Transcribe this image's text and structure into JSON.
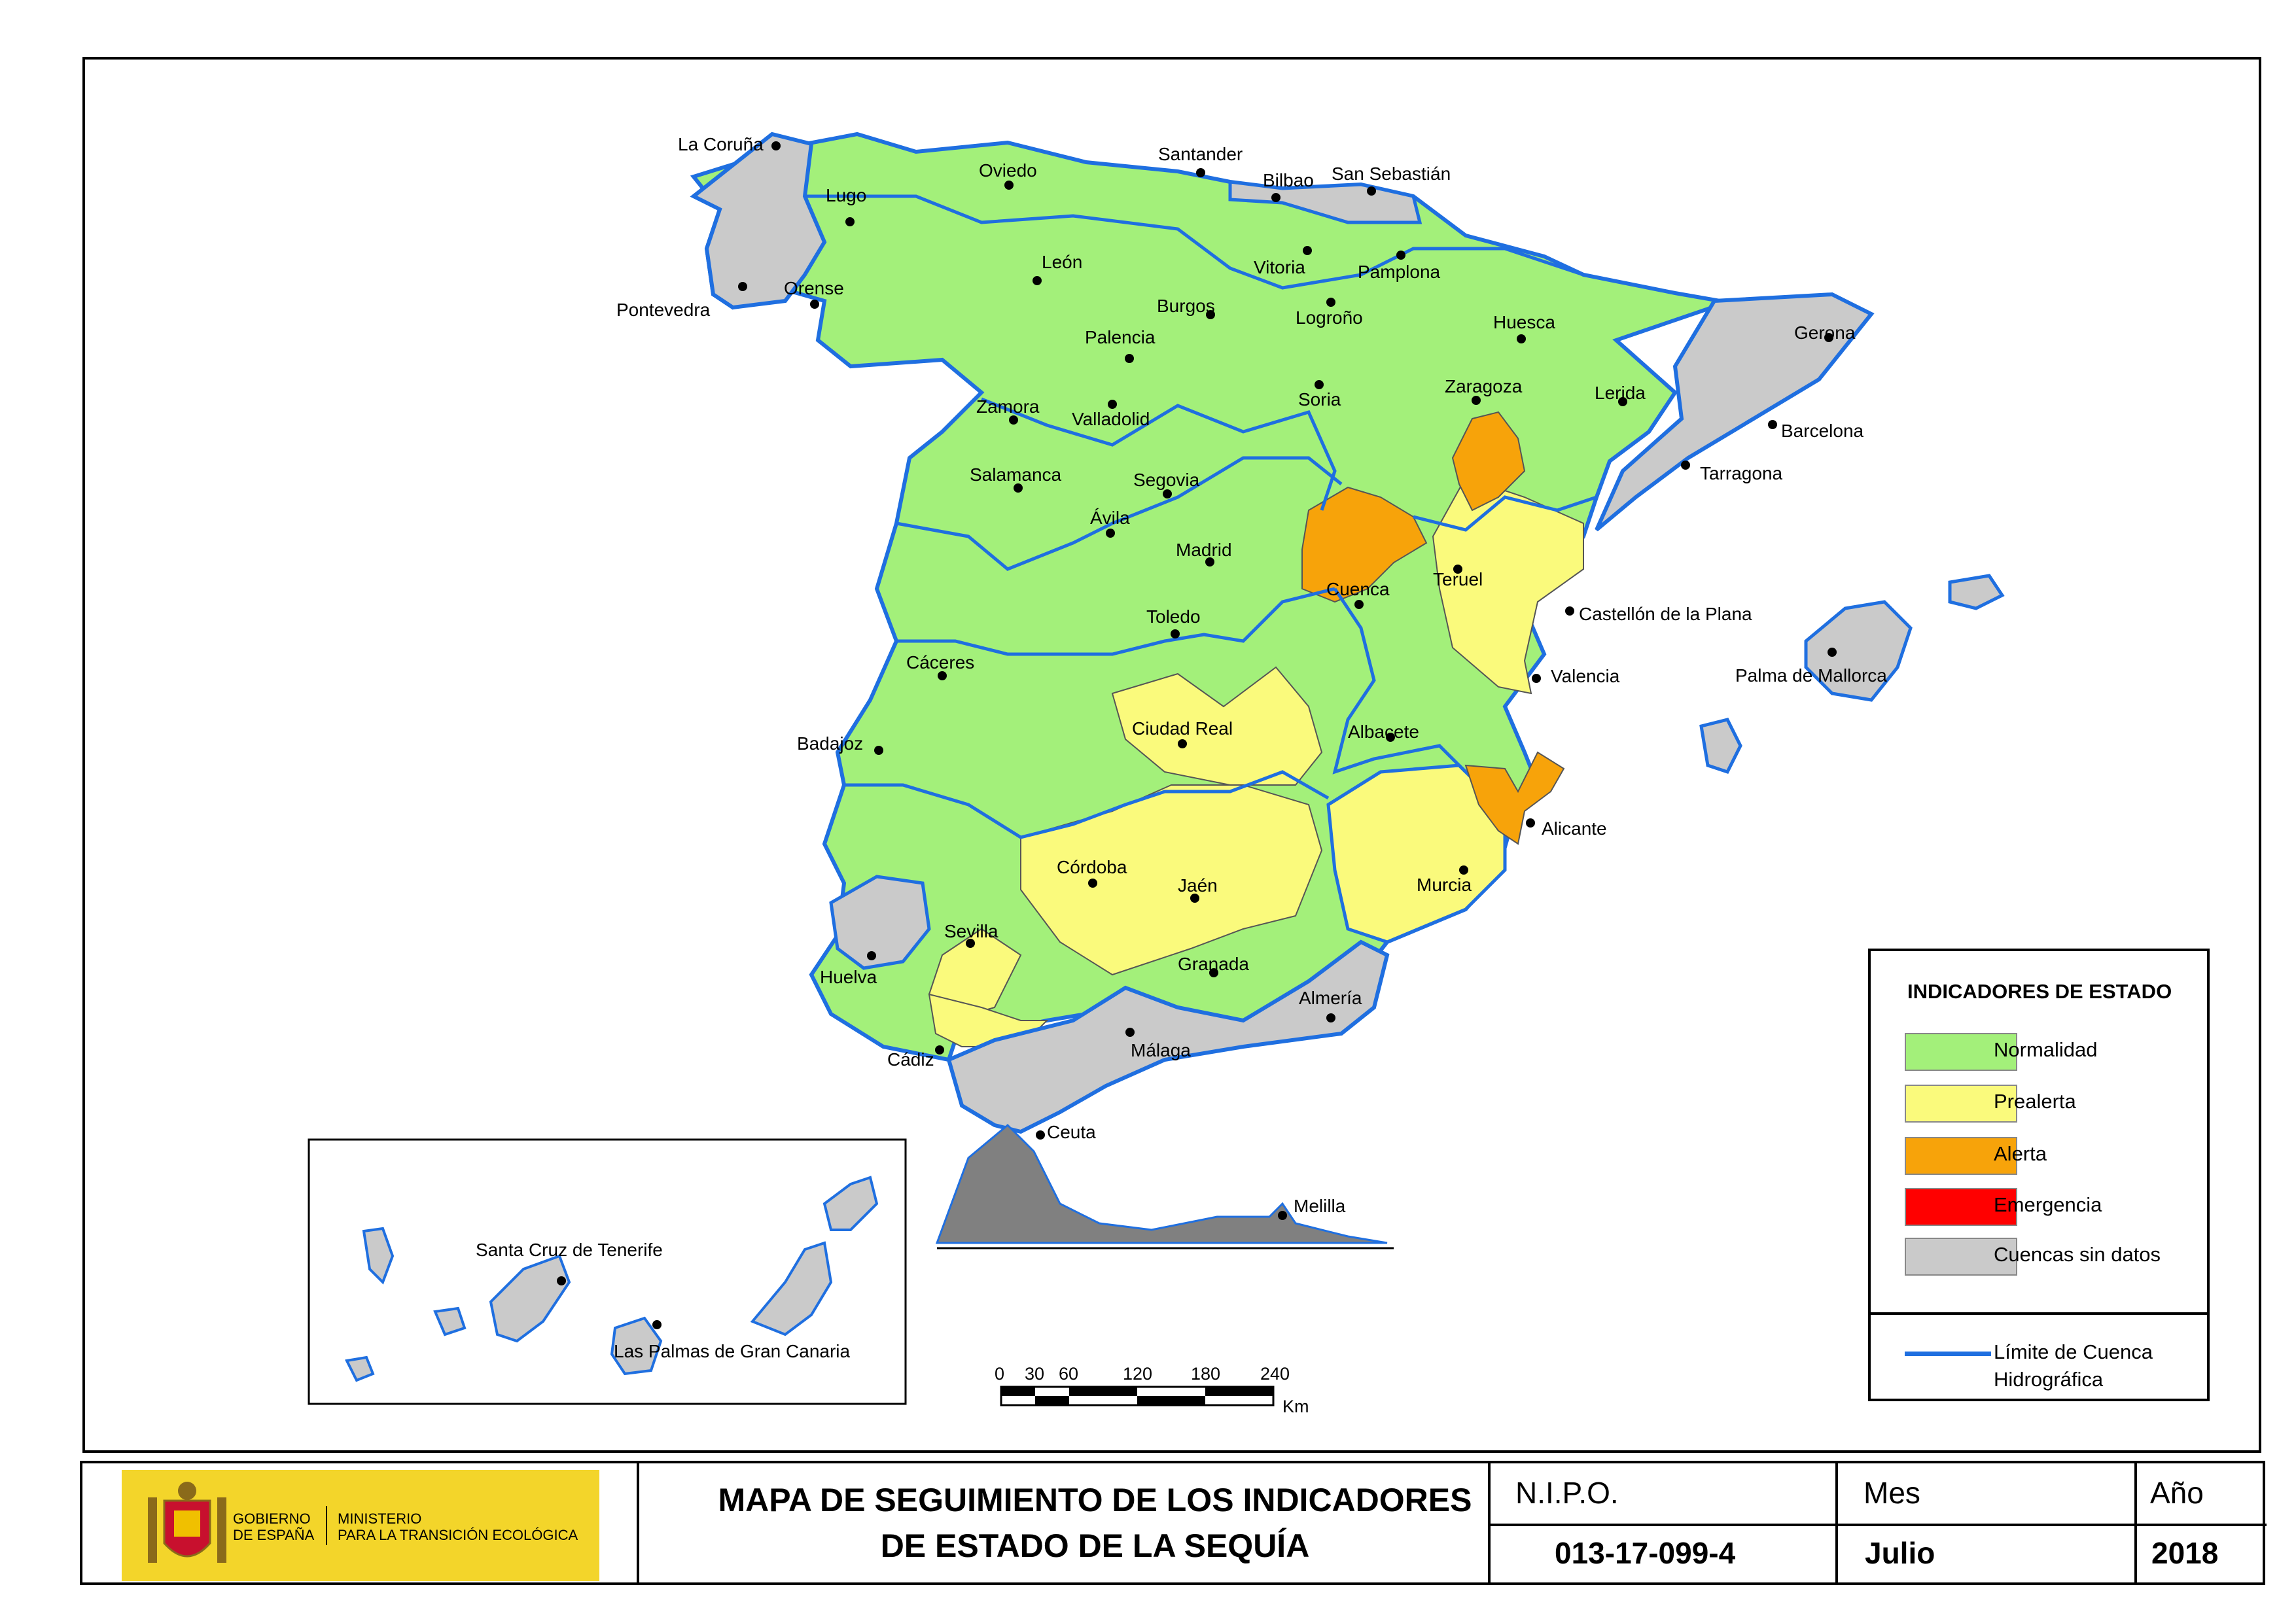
{
  "legend": {
    "title": "INDICADORES DE ESTADO",
    "items": [
      {
        "label": "Normalidad",
        "color": "#a3f07a"
      },
      {
        "label": "Prealerta",
        "color": "#fafa7c"
      },
      {
        "label": "Alerta",
        "color": "#f7a30a"
      },
      {
        "label": "Emergencia",
        "color": "#ff0000"
      },
      {
        "label": "Cuencas sin datos",
        "color": "#cacaca"
      }
    ],
    "boundary_label": "Límite de Cuenca Hidrográfica",
    "boundary_color": "#1f6fe0"
  },
  "cities": [
    "La Coruña",
    "Lugo",
    "Oviedo",
    "Santander",
    "Bilbao",
    "San Sebastián",
    "Pontevedra",
    "Orense",
    "León",
    "Vitoria",
    "Pamplona",
    "Burgos",
    "Logroño",
    "Huesca",
    "Gerona",
    "Palencia",
    "Zamora",
    "Valladolid",
    "Soria",
    "Zaragoza",
    "Lerida",
    "Barcelona",
    "Tarragona",
    "Salamanca",
    "Segovia",
    "Ávila",
    "Madrid",
    "Teruel",
    "Cuenca",
    "Castellón de la Plana",
    "Toledo",
    "Cáceres",
    "Valencia",
    "Palma de Mallorca",
    "Badajoz",
    "Ciudad Real",
    "Albacete",
    "Alicante",
    "Córdoba",
    "Jaén",
    "Murcia",
    "Sevilla",
    "Huelva",
    "Granada",
    "Almería",
    "Cádiz",
    "Málaga",
    "Ceuta",
    "Melilla",
    "Santa Cruz de Tenerife",
    "Las Palmas de Gran Canaria"
  ],
  "scale": {
    "ticks": [
      "0",
      "30",
      "60",
      "120",
      "180",
      "240"
    ],
    "unit": "Km"
  },
  "footer": {
    "logo_text_1": "GOBIERNO\nDE ESPAÑA",
    "logo_text_2": "MINISTERIO\nPARA LA TRANSICIÓN ECOLÓGICA",
    "title_line1": "MAPA DE SEGUIMIENTO DE LOS INDICADORES",
    "title_line2": "DE ESTADO DE LA SEQUÍA",
    "nipo_label": "N.I.P.O.",
    "nipo_value": "013-17-099-4",
    "mes_label": "Mes",
    "mes_value": "Julio",
    "anio_label": "Año",
    "anio_value": "2018"
  }
}
